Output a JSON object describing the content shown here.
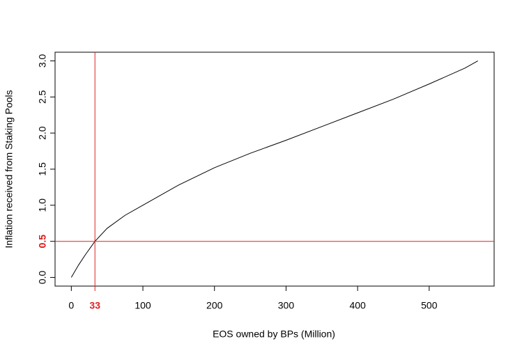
{
  "chart_data": {
    "type": "line",
    "x_label": "EOS owned by BPs (Million)",
    "y_label": "Inflation received from Staking Pools",
    "x": [
      0,
      10,
      20,
      33,
      50,
      75,
      100,
      150,
      200,
      250,
      300,
      350,
      400,
      450,
      500,
      550,
      568
    ],
    "series": [
      {
        "color": "#000000",
        "values": [
          0,
          0.17,
          0.32,
          0.5,
          0.68,
          0.86,
          1.0,
          1.28,
          1.52,
          1.72,
          1.9,
          2.09,
          2.28,
          2.47,
          2.68,
          2.9,
          3.0
        ]
      }
    ],
    "xlim": [
      -22.72,
      590.72
    ],
    "ylim": [
      -0.12,
      3.12
    ],
    "xticks": [
      0,
      100,
      200,
      300,
      400,
      500
    ],
    "yticks": [
      {
        "value": 0,
        "label": "0.0"
      },
      0.5,
      {
        "value": 1,
        "label": "1.0"
      },
      1.5,
      {
        "value": 2,
        "label": "2.0"
      },
      2.5,
      {
        "value": 3,
        "label": "3.0"
      }
    ],
    "reference_lines": [
      {
        "axis": "x",
        "value": 33,
        "color": "#e02020"
      },
      {
        "axis": "y",
        "value": 0.5,
        "color": "#e02020"
      }
    ]
  }
}
